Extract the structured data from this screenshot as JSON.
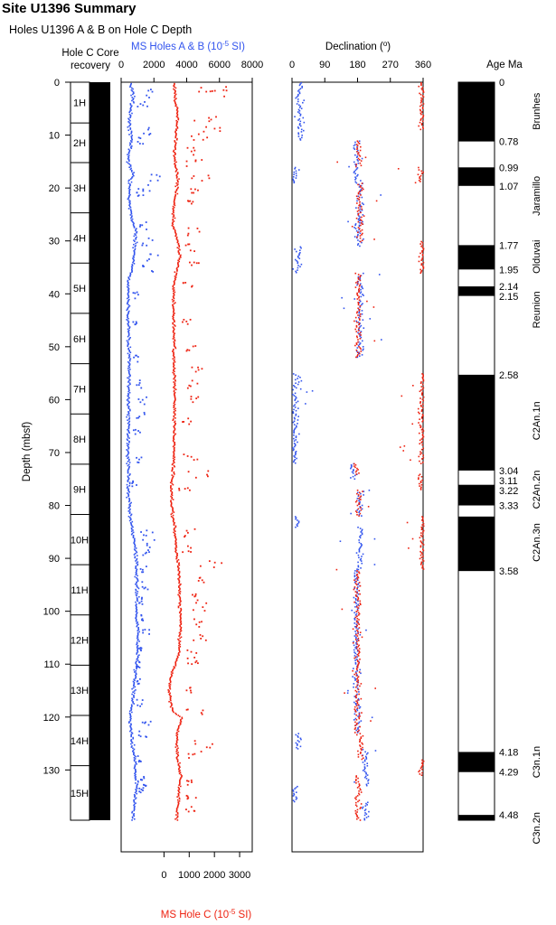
{
  "title": "Site U1396 Summary",
  "subtitle": "Holes U1396 A & B on Hole C Depth",
  "colors": {
    "blue": "#3355ee",
    "red": "#ee2211",
    "black": "#000000"
  },
  "chart_data": [
    {
      "type": "table",
      "panel": "core-recovery",
      "label_line1": "Hole C Core",
      "label_line2": "recovery",
      "cores": [
        {
          "name": "1H",
          "top": 0,
          "bottom": 7.7
        },
        {
          "name": "2H",
          "top": 7.7,
          "bottom": 15.2
        },
        {
          "name": "3H",
          "top": 15.2,
          "bottom": 24.7
        },
        {
          "name": "4H",
          "top": 24.7,
          "bottom": 34.2
        },
        {
          "name": "5H",
          "top": 34.2,
          "bottom": 43.7
        },
        {
          "name": "6H",
          "top": 43.7,
          "bottom": 53.2
        },
        {
          "name": "7H",
          "top": 53.2,
          "bottom": 62.7
        },
        {
          "name": "8H",
          "top": 62.7,
          "bottom": 72.2
        },
        {
          "name": "9H",
          "top": 72.2,
          "bottom": 81.7
        },
        {
          "name": "10H",
          "top": 81.7,
          "bottom": 91.2
        },
        {
          "name": "11H",
          "top": 91.2,
          "bottom": 100.7
        },
        {
          "name": "12H",
          "top": 100.7,
          "bottom": 110.2
        },
        {
          "name": "13H",
          "top": 110.2,
          "bottom": 119.7
        },
        {
          "name": "14H",
          "top": 119.7,
          "bottom": 129.2
        },
        {
          "name": "15H",
          "top": 129.2,
          "bottom": 139.5
        }
      ],
      "recovery_top": 0,
      "recovery_bottom": 139.5
    },
    {
      "type": "scatter",
      "panel": "magnetic-susceptibility",
      "ylabel": "Depth (mbsf)",
      "ylim": [
        0,
        139.5
      ],
      "yticks": [
        "0",
        "10",
        "20",
        "30",
        "40",
        "50",
        "60",
        "70",
        "80",
        "90",
        "100",
        "110",
        "120",
        "130"
      ],
      "top_axis": {
        "label": "MS Holes A & B (10",
        "label_sup": "-5",
        "label_end": " SI)",
        "xlim": [
          0,
          8000
        ],
        "ticks": [
          "0",
          "2000",
          "4000",
          "6000",
          "8000"
        ]
      },
      "bottom_axis": {
        "label": "MS Hole C (10",
        "label_sup": "-5",
        "label_end": " SI)",
        "xlim": [
          -1700,
          3500
        ],
        "ticks": [
          "0",
          "1000",
          "2000",
          "3000"
        ]
      },
      "series": [
        {
          "name": "MS Holes A & B",
          "color": "#3355ee",
          "depth_profile": [
            [
              0,
              500
            ],
            [
              2,
              700
            ],
            [
              5,
              550
            ],
            [
              8,
              450
            ],
            [
              11,
              600
            ],
            [
              13,
              420
            ],
            [
              15,
              380
            ],
            [
              17,
              700
            ],
            [
              19,
              500
            ],
            [
              22,
              450
            ],
            [
              25,
              560
            ],
            [
              28,
              850
            ],
            [
              31,
              800
            ],
            [
              34,
              700
            ],
            [
              36,
              520
            ],
            [
              38,
              400
            ],
            [
              41,
              380
            ],
            [
              45,
              400
            ],
            [
              50,
              420
            ],
            [
              55,
              450
            ],
            [
              60,
              420
            ],
            [
              65,
              400
            ],
            [
              70,
              380
            ],
            [
              74,
              420
            ],
            [
              78,
              400
            ],
            [
              82,
              500
            ],
            [
              85,
              650
            ],
            [
              88,
              800
            ],
            [
              92,
              900
            ],
            [
              96,
              950
            ],
            [
              100,
              900
            ],
            [
              104,
              1000
            ],
            [
              108,
              950
            ],
            [
              112,
              800
            ],
            [
              116,
              700
            ],
            [
              120,
              500
            ],
            [
              124,
              600
            ],
            [
              128,
              800
            ],
            [
              132,
              900
            ],
            [
              135,
              850
            ],
            [
              137,
              700
            ]
          ],
          "spikes": [
            [
              2,
              2400
            ],
            [
              4,
              1600
            ],
            [
              9,
              2100
            ],
            [
              11,
              1500
            ],
            [
              18,
              2500
            ],
            [
              20,
              1700
            ],
            [
              21,
              1300
            ],
            [
              27,
              1500
            ],
            [
              30,
              2000
            ],
            [
              33,
              2300
            ],
            [
              35,
              1900
            ],
            [
              40,
              1100
            ],
            [
              45,
              1000
            ],
            [
              52,
              1000
            ],
            [
              57,
              1200
            ],
            [
              60,
              1700
            ],
            [
              63,
              1500
            ],
            [
              66,
              1300
            ],
            [
              71,
              1200
            ],
            [
              76,
              900
            ],
            [
              85,
              2100
            ],
            [
              87,
              2300
            ],
            [
              89,
              1700
            ],
            [
              92,
              1500
            ],
            [
              95,
              1600
            ],
            [
              98,
              1300
            ],
            [
              101,
              1500
            ],
            [
              104,
              1700
            ],
            [
              107,
              1200
            ],
            [
              110,
              1100
            ],
            [
              113,
              1200
            ],
            [
              117,
              1300
            ],
            [
              121,
              1800
            ],
            [
              123,
              1700
            ],
            [
              128,
              1300
            ],
            [
              131,
              1500
            ],
            [
              133,
              1600
            ],
            [
              134,
              1400
            ]
          ]
        },
        {
          "name": "MS Hole C",
          "color": "#ee2211",
          "depth_profile": [
            [
              0,
              400
            ],
            [
              3,
              420
            ],
            [
              6,
              520
            ],
            [
              9,
              450
            ],
            [
              12,
              410
            ],
            [
              15,
              400
            ],
            [
              18,
              520
            ],
            [
              21,
              440
            ],
            [
              24,
              350
            ],
            [
              27,
              350
            ],
            [
              30,
              540
            ],
            [
              33,
              600
            ],
            [
              36,
              450
            ],
            [
              38,
              360
            ],
            [
              41,
              350
            ],
            [
              45,
              360
            ],
            [
              50,
              380
            ],
            [
              55,
              380
            ],
            [
              60,
              400
            ],
            [
              65,
              380
            ],
            [
              70,
              360
            ],
            [
              74,
              320
            ],
            [
              76,
              260
            ],
            [
              80,
              280
            ],
            [
              84,
              380
            ],
            [
              88,
              450
            ],
            [
              92,
              560
            ],
            [
              96,
              600
            ],
            [
              100,
              620
            ],
            [
              104,
              620
            ],
            [
              108,
              560
            ],
            [
              111,
              330
            ],
            [
              113,
              220
            ],
            [
              115,
              180
            ],
            [
              117,
              220
            ],
            [
              119,
              380
            ],
            [
              120,
              700
            ],
            [
              122,
              530
            ],
            [
              125,
              480
            ],
            [
              128,
              520
            ],
            [
              131,
              620
            ],
            [
              134,
              560
            ],
            [
              137,
              500
            ],
            [
              139,
              480
            ]
          ],
          "spikes": [
            [
              1,
              2700
            ],
            [
              2,
              2400
            ],
            [
              7,
              2100
            ],
            [
              9,
              2300
            ],
            [
              10,
              1900
            ],
            [
              13,
              1600
            ],
            [
              15,
              1500
            ],
            [
              18,
              1800
            ],
            [
              20,
              1400
            ],
            [
              23,
              1200
            ],
            [
              28,
              1400
            ],
            [
              31,
              1300
            ],
            [
              34,
              1500
            ],
            [
              38,
              1100
            ],
            [
              45,
              1100
            ],
            [
              50,
              1300
            ],
            [
              54,
              1500
            ],
            [
              57,
              1300
            ],
            [
              60,
              1400
            ],
            [
              64,
              1200
            ],
            [
              71,
              1300
            ],
            [
              74,
              1800
            ],
            [
              77,
              1100
            ],
            [
              85,
              1200
            ],
            [
              88,
              1100
            ],
            [
              91,
              2300
            ],
            [
              94,
              1700
            ],
            [
              97,
              1500
            ],
            [
              99,
              1700
            ],
            [
              102,
              1600
            ],
            [
              105,
              1700
            ],
            [
              108,
              1400
            ],
            [
              110,
              1500
            ],
            [
              115,
              1200
            ],
            [
              119,
              1600
            ],
            [
              125,
              1900
            ],
            [
              127,
              1700
            ],
            [
              132,
              1200
            ],
            [
              135,
              1400
            ],
            [
              137,
              1200
            ]
          ]
        }
      ]
    },
    {
      "type": "scatter",
      "panel": "declination",
      "xlabel": "Declination (",
      "xlabel_deg": "o",
      "xlabel_end": ")",
      "xlim": [
        0,
        360
      ],
      "xticks": [
        "0",
        "90",
        "180",
        "270",
        "360"
      ],
      "ylim": [
        0,
        139.5
      ],
      "series": [
        {
          "name": "Blue",
          "color": "#3355ee",
          "segments": [
            [
              0,
              11,
              20
            ],
            [
              11,
              19,
              175
            ],
            [
              16,
              19,
              5
            ],
            [
              19,
              27,
              185
            ],
            [
              26,
              31,
              180
            ],
            [
              31,
              36,
              15
            ],
            [
              36,
              52,
              185
            ],
            [
              55,
              58,
              10
            ],
            [
              58,
              72,
              5
            ],
            [
              72,
              75,
              165
            ],
            [
              77,
              82,
              185
            ],
            [
              82,
              84,
              12
            ],
            [
              84,
              92,
              185
            ],
            [
              92,
              123,
              175
            ],
            [
              123,
              126,
              15
            ],
            [
              126,
              133,
              200
            ],
            [
              133,
              136,
              5
            ],
            [
              136,
              139.5,
              200
            ]
          ]
        },
        {
          "name": "Red",
          "color": "#ee2211",
          "segments": [
            [
              0,
              9,
              355
            ],
            [
              11,
              16,
              180
            ],
            [
              16,
              19,
              350
            ],
            [
              19,
              30,
              185
            ],
            [
              30,
              36,
              355
            ],
            [
              36,
              52,
              180
            ],
            [
              55,
              72,
              355
            ],
            [
              72,
              74,
              175
            ],
            [
              74,
              77,
              350
            ],
            [
              77,
              82,
              180
            ],
            [
              82,
              92,
              355
            ],
            [
              92,
              123,
              178
            ],
            [
              123,
              128,
              185
            ],
            [
              128,
              131,
              355
            ],
            [
              131,
              139.5,
              180
            ]
          ]
        }
      ]
    },
    {
      "type": "table",
      "panel": "polarity-column",
      "title": "Age Ma",
      "ylim": [
        0,
        139.5
      ],
      "normal": [
        [
          0,
          11.2
        ],
        [
          16.1,
          19.6
        ],
        [
          30.8,
          35.4
        ],
        [
          38.6,
          40.4
        ],
        [
          55.3,
          73.4
        ],
        [
          76.1,
          80.0
        ],
        [
          82.1,
          92.4
        ],
        [
          126.6,
          130.4
        ],
        [
          138.5,
          139.5
        ]
      ],
      "age_labels": [
        {
          "age": "0",
          "depth": 0
        },
        {
          "age": "0.78",
          "depth": 11.2
        },
        {
          "age": "0.99",
          "depth": 16.1
        },
        {
          "age": "1.07",
          "depth": 19.6
        },
        {
          "age": "1.77",
          "depth": 30.8
        },
        {
          "age": "1.95",
          "depth": 35.4
        },
        {
          "age": "2.14",
          "depth": 38.6
        },
        {
          "age": "2.15",
          "depth": 40.4
        },
        {
          "age": "2.58",
          "depth": 55.3
        },
        {
          "age": "3.04",
          "depth": 73.4
        },
        {
          "age": "3.11",
          "depth": 74.8
        },
        {
          "age": "3.22",
          "depth": 76.1
        },
        {
          "age": "3.33",
          "depth": 80.0
        },
        {
          "age": "3.58",
          "depth": 92.4
        },
        {
          "age": "4.18",
          "depth": 126.6
        },
        {
          "age": "4.29",
          "depth": 130.4
        },
        {
          "age": "4.48",
          "depth": 138.5
        }
      ],
      "chrons": [
        {
          "name": "Brunhes",
          "depth": 5.5
        },
        {
          "name": "Jaramillo",
          "depth": 21.5
        },
        {
          "name": "Olduvai",
          "depth": 33
        },
        {
          "name": "Reunion",
          "depth": 43
        },
        {
          "name": "C2An.1n",
          "depth": 64
        },
        {
          "name": "C2An.2n",
          "depth": 77
        },
        {
          "name": "C2An.3n",
          "depth": 87
        },
        {
          "name": "C3n.1n",
          "depth": 128.5
        },
        {
          "name": "C3n.2n",
          "depth": 141
        }
      ]
    }
  ]
}
